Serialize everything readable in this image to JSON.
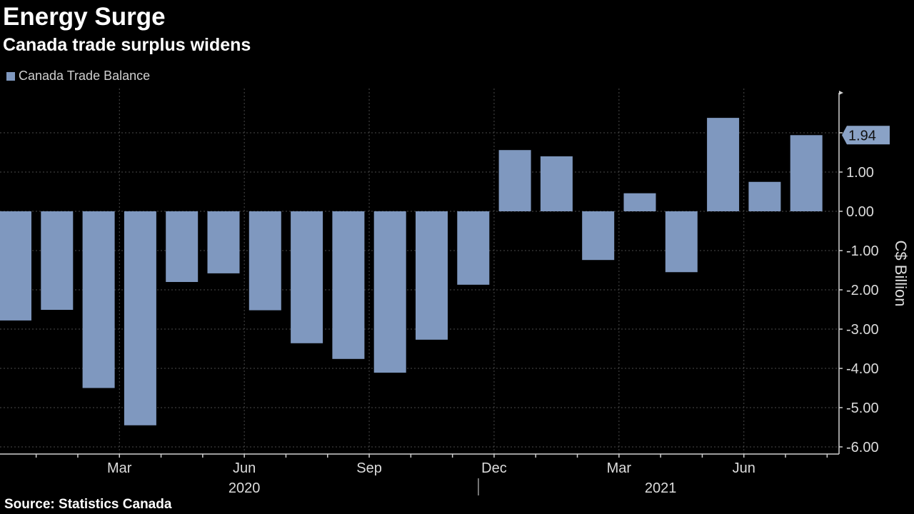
{
  "title": "Energy Surge",
  "subtitle": "Canada trade surplus widens",
  "source": "Source: Statistics Canada",
  "colors": {
    "bar": "#7f98bf",
    "background": "#000000",
    "grid": "#4a4a4a",
    "axis": "#cfcfcf",
    "label_box": "#8aa2c6"
  },
  "chart_data": {
    "type": "bar",
    "ylabel": "C$ Billion",
    "ylim": [
      -6.2,
      3.1
    ],
    "yticks": [
      -6.0,
      -5.0,
      -4.0,
      -3.0,
      -2.0,
      -1.0,
      0.0,
      1.0,
      2.0
    ],
    "ytick_labels": [
      "-6.00",
      "-5.00",
      "-4.00",
      "-3.00",
      "-2.00",
      "-1.00",
      "0.00",
      "1.00",
      ""
    ],
    "grid": true,
    "legend": {
      "position": "top-left",
      "entries": [
        "Canada Trade Balance"
      ]
    },
    "categories": [
      "2020-01",
      "2020-02",
      "2020-03",
      "2020-04",
      "2020-05",
      "2020-06",
      "2020-07",
      "2020-08",
      "2020-09",
      "2020-10",
      "2020-11",
      "2020-12",
      "2021-01",
      "2021-02",
      "2021-03",
      "2021-04",
      "2021-05",
      "2021-06",
      "2021-07",
      "2021-08"
    ],
    "series": [
      {
        "name": "Canada Trade Balance",
        "values": [
          -2.78,
          -2.51,
          -4.5,
          -5.45,
          -1.8,
          -1.58,
          -2.52,
          -3.36,
          -3.76,
          -4.11,
          -3.27,
          -1.87,
          1.56,
          1.4,
          -1.24,
          0.46,
          -1.55,
          2.38,
          0.75,
          1.94
        ]
      }
    ],
    "x_month_labels": [
      {
        "index": 2,
        "label": "Mar"
      },
      {
        "index": 5,
        "label": "Jun"
      },
      {
        "index": 8,
        "label": "Sep"
      },
      {
        "index": 11,
        "label": "Dec"
      },
      {
        "index": 14,
        "label": "Mar"
      },
      {
        "index": 17,
        "label": "Jun"
      }
    ],
    "x_year_labels": [
      {
        "center_index": 5.5,
        "label": "2020"
      },
      {
        "center_index": 15.5,
        "label": "2021"
      }
    ],
    "last_value_label": "1.94"
  }
}
